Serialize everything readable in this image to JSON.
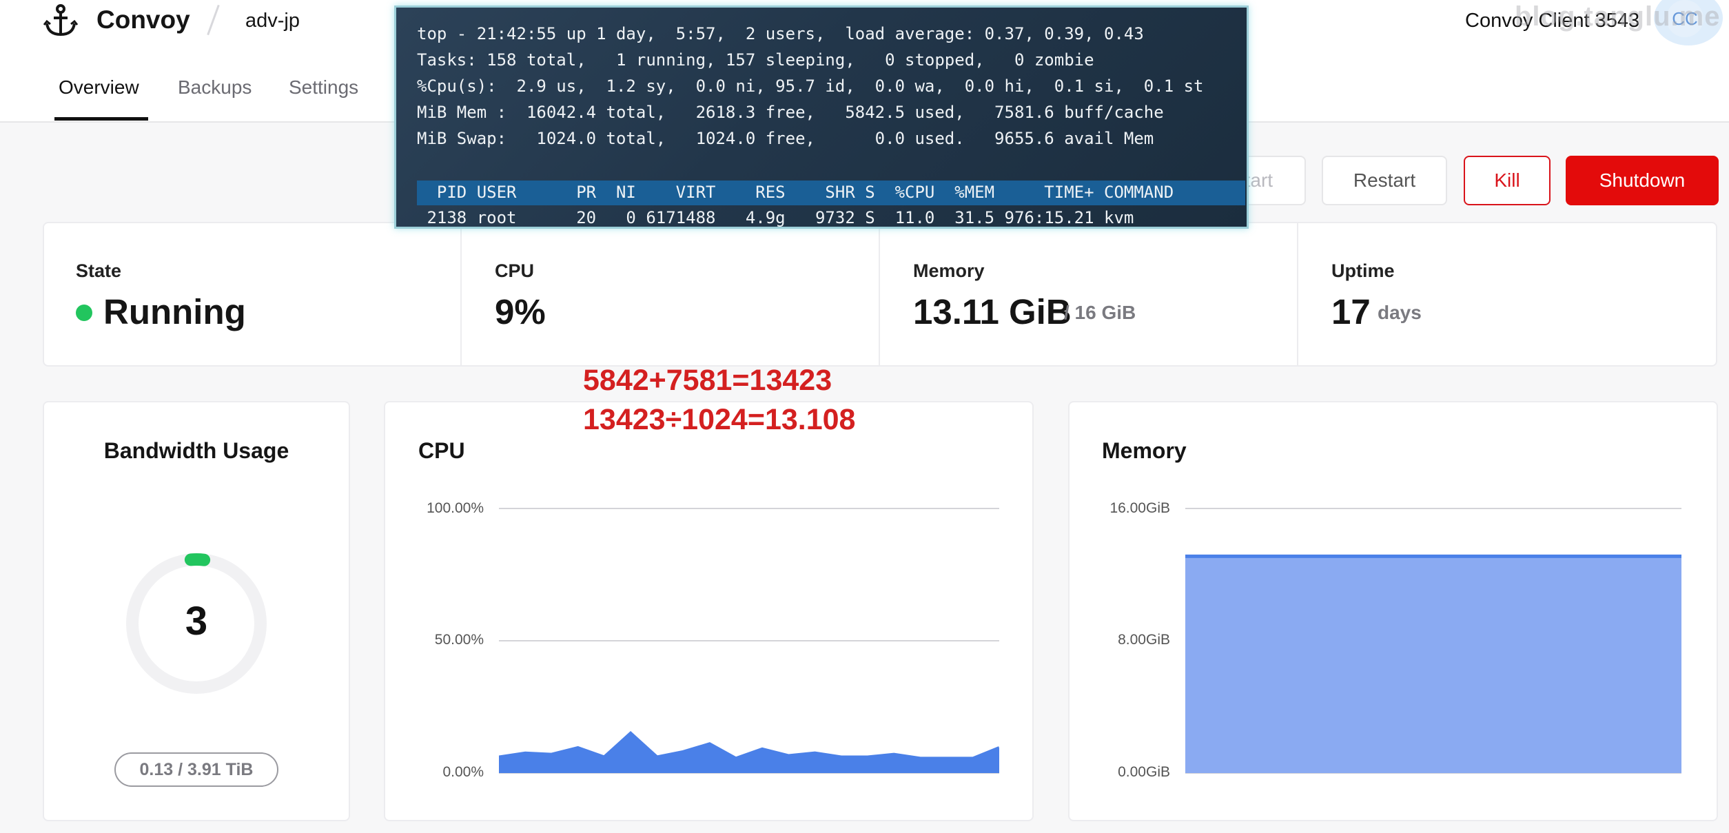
{
  "header": {
    "brand": "Convoy",
    "server_name": "adv-jp",
    "tabs": [
      "Overview",
      "Backups",
      "Settings"
    ],
    "client_name": "Convoy Client 3543",
    "avatar_initials": "CC",
    "watermark": "blog.tanglu.me"
  },
  "actions": {
    "start": "Start",
    "restart": "Restart",
    "kill": "Kill",
    "shutdown": "Shutdown"
  },
  "stats": {
    "state_label": "State",
    "state_value": "Running",
    "cpu_label": "CPU",
    "cpu_value": "9%",
    "memory_label": "Memory",
    "memory_value": "13.11 GiB",
    "memory_total": "/ 16 GiB",
    "uptime_label": "Uptime",
    "uptime_value": "17",
    "uptime_unit": "days"
  },
  "bandwidth": {
    "title": "Bandwidth Usage",
    "value": "3",
    "usage": "0.13 / 3.91 TiB",
    "fill_fraction": 0.033
  },
  "cpu_chart": {
    "title": "CPU",
    "ticks": [
      "100.00%",
      "50.00%",
      "0.00%"
    ]
  },
  "memory_chart": {
    "title": "Memory",
    "ticks": [
      "16.00GiB",
      "8.00GiB",
      "0.00GiB"
    ]
  },
  "annotation": {
    "line1": "5842+7581=13423",
    "line2": "13423÷1024=13.108"
  },
  "terminal": {
    "lines": [
      "top - 21:42:55 up 1 day,  5:57,  2 users,  load average: 0.37, 0.39, 0.43",
      "Tasks: 158 total,   1 running, 157 sleeping,   0 stopped,   0 zombie",
      "%Cpu(s):  2.9 us,  1.2 sy,  0.0 ni, 95.7 id,  0.0 wa,  0.0 hi,  0.1 si,  0.1 st",
      "MiB Mem :  16042.4 total,   2618.3 free,   5842.5 used,   7581.6 buff/cache",
      "MiB Swap:   1024.0 total,   1024.0 free,      0.0 used.   9655.6 avail Mem"
    ],
    "table_header": "  PID USER      PR  NI    VIRT    RES    SHR S  %CPU  %MEM     TIME+ COMMAND",
    "table_row": " 2138 root      20   0 6171488   4.9g   9732 S  11.0  31.5 976:15.21 kvm"
  },
  "colors": {
    "accent_red": "#e30b0b",
    "running_green": "#22c55e",
    "chart_blue": "#4a80e8",
    "chart_fill": "#8aaaf2"
  },
  "chart_data": [
    {
      "type": "area",
      "title": "CPU",
      "ylim": [
        0,
        100
      ],
      "y_ticks": [
        "0.00%",
        "50.00%",
        "100.00%"
      ],
      "series": [
        {
          "values": [
            6,
            7.5,
            7,
            9.5,
            6,
            15,
            6,
            8,
            11,
            5.5,
            9,
            6.5,
            7.5,
            6,
            6,
            7,
            5.5,
            5.5,
            5.5,
            9.5
          ]
        }
      ]
    },
    {
      "type": "area",
      "title": "Memory",
      "ylim": [
        0,
        16
      ],
      "y_ticks": [
        "0.00GiB",
        "8.00GiB",
        "16.00GiB"
      ],
      "series": [
        {
          "values": [
            13.11,
            13.11,
            13.11,
            13.11,
            13.11,
            13.11,
            13.11,
            13.11,
            13.11,
            13.11
          ]
        }
      ]
    }
  ]
}
